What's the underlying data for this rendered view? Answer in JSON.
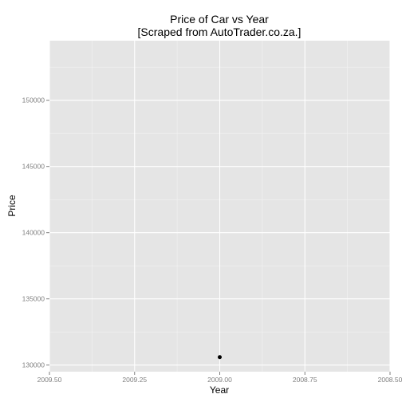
{
  "chart_data": {
    "type": "scatter",
    "title": [
      "Price of Car vs Year",
      "[Scraped from AutoTrader.co.za.]"
    ],
    "xlabel": "Year",
    "ylabel": "Price",
    "xlim": [
      2009.5,
      2008.5
    ],
    "ylim": [
      129500,
      154500
    ],
    "x_reversed": true,
    "x_ticks": [
      2009.5,
      2009.25,
      2009.0,
      2008.75,
      2008.5
    ],
    "x_tick_labels": [
      "2009.50",
      "2009.25",
      "2009.00",
      "2008.75",
      "2008.50"
    ],
    "y_ticks": [
      130000,
      135000,
      140000,
      145000,
      150000
    ],
    "y_tick_labels": [
      "130000",
      "135000",
      "140000",
      "145000",
      "150000"
    ],
    "points": [
      {
        "x": 2009.0,
        "y": 130600
      }
    ],
    "grid": true,
    "colors": {
      "panel": "#e5e5e5",
      "grid_major": "#ffffff",
      "grid_minor": "#f2f2f2",
      "point": "#000000",
      "tick_label": "#7f7f7f"
    }
  }
}
